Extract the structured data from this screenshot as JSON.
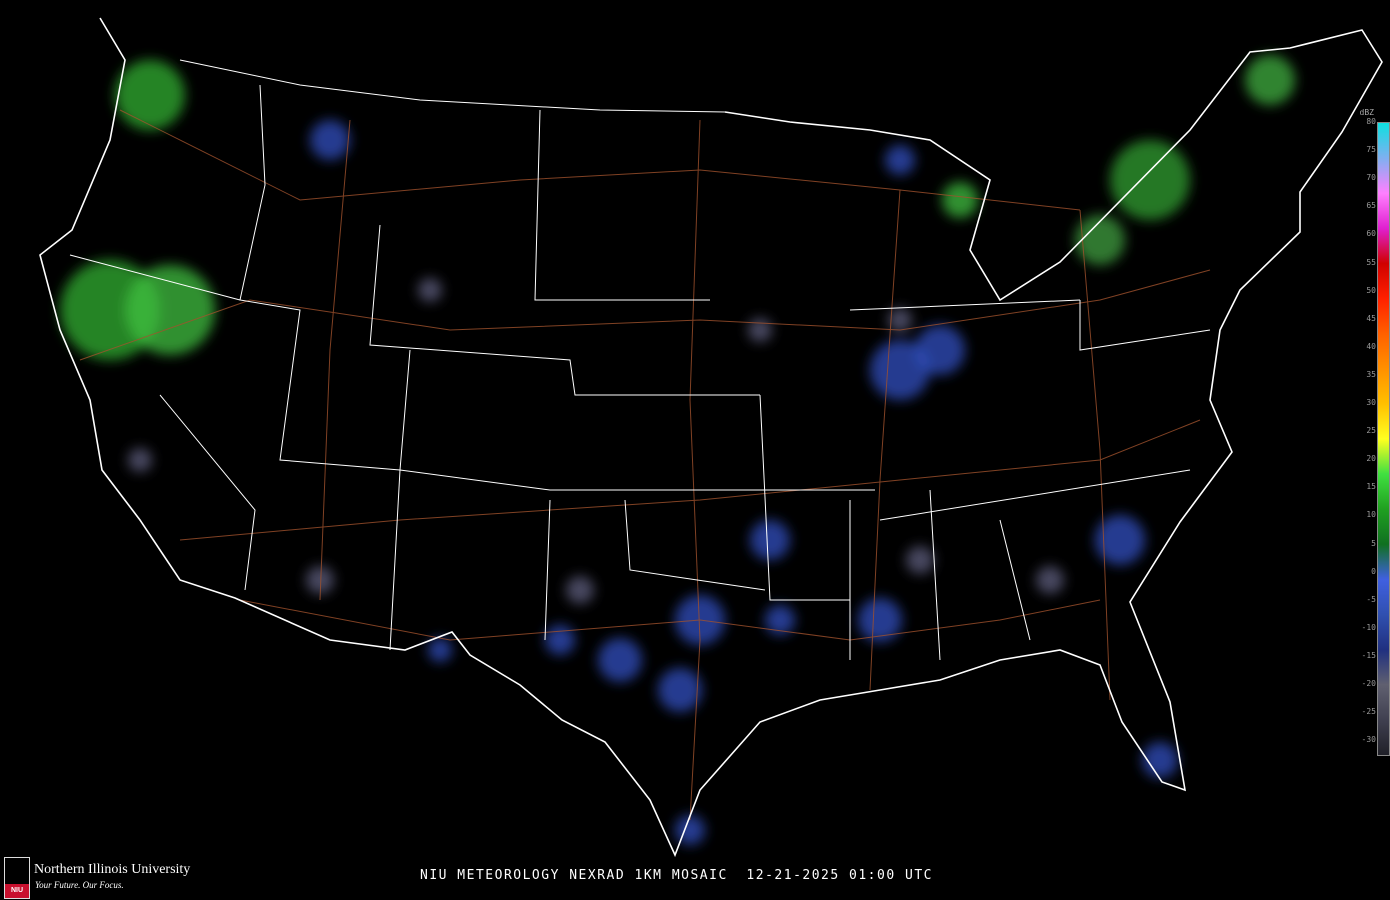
{
  "caption": "NIU METEOROLOGY NEXRAD 1KM MOSAIC  12-21-2025 01:00 UTC",
  "legend": {
    "unit": "dBZ",
    "ticks": [
      "80",
      "75",
      "70",
      "65",
      "60",
      "55",
      "50",
      "45",
      "40",
      "35",
      "30",
      "25",
      "20",
      "15",
      "10",
      "5",
      "0",
      "-5",
      "-10",
      "-15",
      "-20",
      "-25",
      "-30"
    ],
    "range": [
      -30,
      80
    ],
    "colors": [
      "#0ee0e0",
      "#7fb0f0",
      "#ff80ff",
      "#e020d0",
      "#d00000",
      "#ff2000",
      "#ff6000",
      "#ff9000",
      "#ffc000",
      "#ffff20",
      "#40e040",
      "#20a020",
      "#107020",
      "#4060e0",
      "#3050b0",
      "#203080",
      "#606070",
      "#404050",
      "#202028"
    ]
  },
  "logo": {
    "name": "Northern Illinois University",
    "tagline": "Your Future. Our Focus.",
    "shield_text": "NIU"
  }
}
